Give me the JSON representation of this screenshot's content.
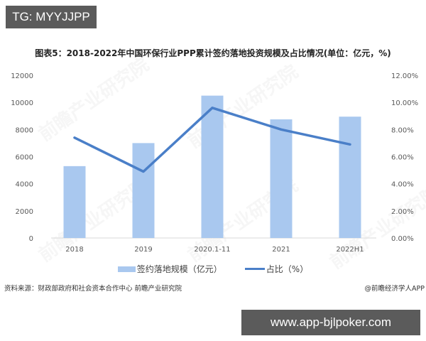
{
  "badges": {
    "tg": "TG: MYYJJPP",
    "url": "www.app-bjlpoker.com"
  },
  "title": "图表5：2018-2022年中国环保行业PPP累计签约落地投资规模及占比情况(单位：亿元，%)",
  "watermark": "前瞻产业研究院",
  "legend": {
    "bar": "签约落地规模（亿元）",
    "line": "占比（%）"
  },
  "footer": {
    "source": "资料来源：财政部政府和社会资本合作中心 前瞻产业研究院",
    "credit": "@前瞻经济学人APP"
  },
  "colors": {
    "bar": "#a9c8ef",
    "line": "#4a7fc8"
  },
  "chart_data": {
    "type": "bar+line",
    "title": "图表5：2018-2022年中国环保行业PPP累计签约落地投资规模及占比情况(单位：亿元，%)",
    "categories": [
      "2018",
      "2019",
      "2020.1-11",
      "2021",
      "2022H1"
    ],
    "series": [
      {
        "name": "签约落地规模（亿元）",
        "type": "bar",
        "axis": "left",
        "values": [
          5300,
          7000,
          10500,
          8750,
          8950
        ]
      },
      {
        "name": "占比（%）",
        "type": "line",
        "axis": "right",
        "values": [
          7.4,
          4.9,
          9.6,
          8.0,
          6.9
        ]
      }
    ],
    "yaxis_left": {
      "range": [
        0,
        12000
      ],
      "ticks": [
        "0",
        "2000",
        "4000",
        "6000",
        "8000",
        "10000",
        "12000"
      ]
    },
    "yaxis_right": {
      "range": [
        0,
        12
      ],
      "ticks": [
        "0.00%",
        "2.00%",
        "4.00%",
        "6.00%",
        "8.00%",
        "10.00%",
        "12.00%"
      ]
    },
    "xlabel": "",
    "ylabel": "",
    "grid": false,
    "legend_position": "bottom"
  }
}
